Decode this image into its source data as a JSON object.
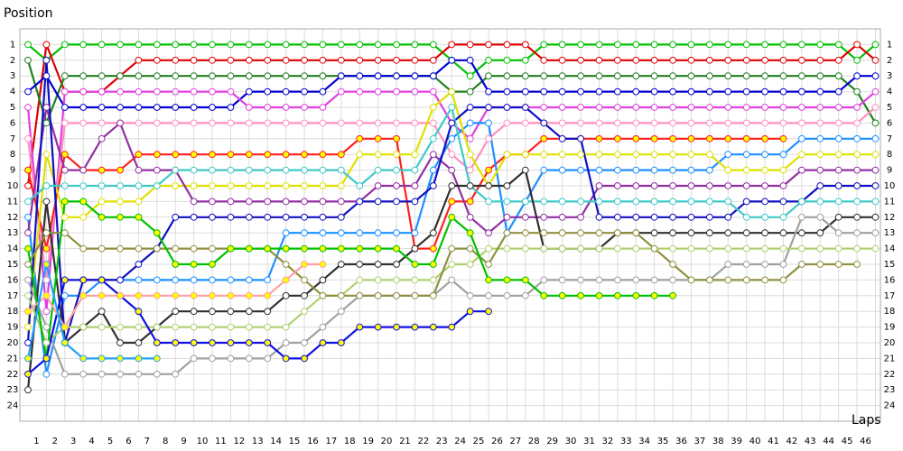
{
  "chart_data": {
    "type": "line",
    "title": "Position",
    "x_label": "Laps",
    "x": [
      0,
      1,
      2,
      3,
      4,
      5,
      6,
      7,
      8,
      9,
      10,
      11,
      12,
      13,
      14,
      15,
      16,
      17,
      18,
      19,
      20,
      21,
      22,
      23,
      24,
      25,
      26,
      27,
      28,
      29,
      30,
      31,
      32,
      33,
      34,
      35,
      36,
      37,
      38,
      39,
      40,
      41,
      42,
      43,
      44,
      45,
      46
    ],
    "xlim": [
      0,
      46.27
    ],
    "xticks": [
      1,
      2,
      3,
      4,
      5,
      6,
      7,
      8,
      9,
      10,
      11,
      12,
      13,
      14,
      15,
      16,
      17,
      18,
      19,
      20,
      21,
      22,
      23,
      24,
      25,
      26,
      27,
      28,
      29,
      30,
      31,
      32,
      33,
      34,
      35,
      36,
      37,
      38,
      39,
      40,
      41,
      42,
      43,
      44,
      45,
      46
    ],
    "ylim": [
      25,
      0
    ],
    "yticks": [
      1,
      2,
      3,
      4,
      5,
      6,
      7,
      8,
      9,
      10,
      11,
      12,
      13,
      14,
      15,
      16,
      17,
      18,
      19,
      20,
      21,
      22,
      23,
      24
    ],
    "grid": true,
    "series": [
      {
        "color": "#00c000",
        "marker_color": "#ffffff",
        "values": [
          1,
          2,
          1,
          1,
          1,
          1,
          1,
          1,
          1,
          1,
          1,
          1,
          1,
          1,
          1,
          1,
          1,
          1,
          1,
          1,
          1,
          1,
          1,
          2,
          3,
          2,
          2,
          2,
          1,
          1,
          1,
          1,
          1,
          1,
          1,
          1,
          1,
          1,
          1,
          1,
          1,
          1,
          1,
          1,
          1,
          2,
          1
        ]
      },
      {
        "color": "#e00000",
        "marker_color": "#ffffff",
        "values": [
          10,
          1,
          4,
          4,
          4,
          3,
          2,
          2,
          2,
          2,
          2,
          2,
          2,
          2,
          2,
          2,
          2,
          2,
          2,
          2,
          2,
          2,
          2,
          1,
          1,
          1,
          1,
          1,
          2,
          2,
          2,
          2,
          2,
          2,
          2,
          2,
          2,
          2,
          2,
          2,
          2,
          2,
          2,
          2,
          2,
          1,
          2
        ]
      },
      {
        "color": "#208020",
        "marker_color": "#ffffff",
        "values": [
          2,
          6,
          3,
          3,
          3,
          3,
          3,
          3,
          3,
          3,
          3,
          3,
          3,
          3,
          3,
          3,
          3,
          3,
          3,
          3,
          3,
          3,
          3,
          4,
          4,
          3,
          3,
          3,
          3,
          3,
          3,
          3,
          3,
          3,
          3,
          3,
          3,
          3,
          3,
          3,
          3,
          3,
          3,
          3,
          3,
          4,
          6
        ]
      },
      {
        "color": "#0000d0",
        "marker_color": "#ffffff",
        "values": [
          4,
          3,
          5,
          5,
          5,
          5,
          5,
          5,
          5,
          5,
          5,
          5,
          4,
          4,
          4,
          4,
          4,
          3,
          3,
          3,
          3,
          3,
          3,
          2,
          2,
          4,
          4,
          4,
          4,
          4,
          4,
          4,
          4,
          4,
          4,
          4,
          4,
          4,
          4,
          4,
          4,
          4,
          4,
          4,
          4,
          3,
          3
        ]
      },
      {
        "color": "#e040e0",
        "marker_color": "#ffffff",
        "values": [
          5,
          18,
          4,
          4,
          4,
          4,
          4,
          4,
          4,
          4,
          4,
          4,
          5,
          5,
          5,
          5,
          5,
          4,
          4,
          4,
          4,
          4,
          4,
          6,
          7,
          5,
          5,
          5,
          5,
          5,
          5,
          5,
          5,
          5,
          5,
          5,
          5,
          5,
          5,
          5,
          5,
          5,
          5,
          5,
          5,
          5,
          4
        ]
      },
      {
        "color": "#ff90c0",
        "marker_color": "#ffffff",
        "values": [
          7,
          16,
          6,
          6,
          6,
          6,
          6,
          6,
          6,
          6,
          6,
          6,
          6,
          6,
          6,
          6,
          6,
          6,
          6,
          6,
          6,
          6,
          6,
          8,
          9,
          7,
          6,
          6,
          6,
          6,
          6,
          6,
          6,
          6,
          6,
          6,
          6,
          6,
          6,
          6,
          6,
          6,
          6,
          6,
          6,
          6,
          5
        ]
      },
      {
        "color": "#ff2020",
        "marker_color": "#ffff00",
        "values": [
          9,
          14,
          8,
          9,
          9,
          9,
          8,
          8,
          8,
          8,
          8,
          8,
          8,
          8,
          8,
          8,
          8,
          8,
          7,
          7,
          7,
          14,
          14,
          11,
          11,
          9,
          8,
          8,
          7,
          7,
          7,
          7,
          7,
          7,
          7,
          7,
          7,
          7,
          7,
          7,
          7,
          7,
          null,
          null,
          null,
          null,
          null
        ]
      },
      {
        "color": "#1e90ff",
        "marker_color": "#ffffff",
        "values": [
          12,
          22,
          17,
          17,
          16,
          16,
          16,
          16,
          16,
          16,
          16,
          16,
          16,
          16,
          13,
          13,
          13,
          13,
          13,
          13,
          13,
          13,
          9,
          7,
          6,
          6,
          13,
          11,
          9,
          9,
          9,
          9,
          9,
          9,
          9,
          9,
          9,
          9,
          8,
          8,
          8,
          8,
          7,
          7,
          7,
          7,
          7
        ]
      },
      {
        "color": "#e0e000",
        "marker_color": "#ffffff",
        "values": [
          19,
          8,
          12,
          12,
          11,
          11,
          11,
          10,
          10,
          10,
          10,
          10,
          10,
          10,
          10,
          10,
          10,
          10,
          8,
          8,
          8,
          8,
          5,
          4,
          8,
          10,
          8,
          8,
          8,
          8,
          8,
          8,
          8,
          8,
          8,
          8,
          8,
          8,
          9,
          9,
          9,
          9,
          8,
          8,
          8,
          8,
          8
        ]
      },
      {
        "color": "#9030a0",
        "marker_color": "#ffffff",
        "values": [
          13,
          5,
          9,
          9,
          7,
          6,
          9,
          9,
          9,
          11,
          11,
          11,
          11,
          11,
          11,
          11,
          11,
          11,
          11,
          10,
          10,
          10,
          8,
          9,
          12,
          13,
          12,
          12,
          12,
          12,
          12,
          10,
          10,
          10,
          10,
          10,
          10,
          10,
          10,
          10,
          10,
          10,
          9,
          9,
          9,
          9,
          9
        ]
      },
      {
        "color": "#1010c0",
        "marker_color": "#ffffff",
        "values": [
          20,
          2,
          20,
          16,
          16,
          16,
          15,
          14,
          12,
          12,
          12,
          12,
          12,
          12,
          12,
          12,
          12,
          12,
          11,
          11,
          11,
          11,
          10,
          6,
          5,
          5,
          5,
          5,
          6,
          7,
          7,
          12,
          12,
          12,
          12,
          12,
          12,
          12,
          12,
          11,
          11,
          11,
          11,
          10,
          10,
          10,
          10
        ]
      },
      {
        "color": "#40c8c8",
        "marker_color": "#ffffff",
        "values": [
          11,
          10,
          10,
          10,
          10,
          10,
          10,
          10,
          9,
          9,
          9,
          9,
          9,
          9,
          9,
          9,
          9,
          9,
          10,
          9,
          9,
          9,
          7,
          5,
          10,
          11,
          11,
          11,
          11,
          11,
          11,
          11,
          11,
          11,
          11,
          11,
          11,
          11,
          11,
          12,
          12,
          12,
          11,
          11,
          11,
          11,
          11
        ]
      },
      {
        "color": "#303030",
        "marker_color": "#ffffff",
        "values": [
          23,
          11,
          20,
          19,
          18,
          20,
          20,
          19,
          18,
          18,
          18,
          18,
          18,
          18,
          17,
          17,
          16,
          15,
          15,
          15,
          15,
          14,
          13,
          10,
          10,
          10,
          10,
          9,
          14,
          14,
          14,
          14,
          13,
          13,
          13,
          13,
          13,
          13,
          13,
          13,
          13,
          13,
          13,
          13,
          12,
          12,
          12
        ]
      },
      {
        "color": "#a0a0a0",
        "marker_color": "#ffffff",
        "values": [
          16,
          19,
          22,
          22,
          22,
          22,
          22,
          22,
          22,
          21,
          21,
          21,
          21,
          21,
          20,
          20,
          19,
          18,
          17,
          17,
          17,
          17,
          17,
          16,
          17,
          17,
          17,
          17,
          16,
          16,
          16,
          16,
          16,
          16,
          16,
          16,
          16,
          16,
          15,
          15,
          15,
          15,
          12,
          12,
          13,
          13,
          13
        ]
      },
      {
        "color": "#b0d070",
        "marker_color": "#ffffff",
        "values": [
          17,
          20,
          19,
          19,
          19,
          19,
          19,
          19,
          19,
          19,
          19,
          19,
          19,
          19,
          19,
          18,
          17,
          17,
          16,
          16,
          16,
          16,
          16,
          15,
          15,
          14,
          14,
          14,
          14,
          14,
          14,
          14,
          14,
          14,
          14,
          14,
          14,
          14,
          14,
          14,
          14,
          14,
          14,
          14,
          14,
          14,
          14
        ]
      },
      {
        "color": "#909040",
        "marker_color": "#ffffff",
        "values": [
          15,
          13,
          13,
          14,
          14,
          14,
          14,
          14,
          14,
          14,
          14,
          14,
          14,
          14,
          15,
          16,
          17,
          17,
          17,
          17,
          17,
          17,
          17,
          14,
          14,
          15,
          13,
          13,
          13,
          13,
          13,
          13,
          13,
          13,
          14,
          15,
          16,
          16,
          16,
          16,
          16,
          16,
          15,
          15,
          15,
          15,
          null
        ]
      },
      {
        "color": "#00c000",
        "marker_color": "#ffff00",
        "values": [
          14,
          21,
          11,
          11,
          12,
          12,
          12,
          13,
          15,
          15,
          15,
          14,
          14,
          14,
          14,
          14,
          14,
          14,
          14,
          14,
          14,
          15,
          15,
          12,
          13,
          16,
          16,
          16,
          17,
          17,
          17,
          17,
          17,
          17,
          17,
          17,
          null,
          null,
          null,
          null,
          null,
          null,
          null,
          null,
          null,
          null,
          null
        ]
      },
      {
        "color": "#1010e0",
        "marker_color": "#ffff00",
        "values": [
          22,
          21,
          16,
          16,
          16,
          17,
          18,
          20,
          20,
          20,
          20,
          20,
          20,
          20,
          21,
          21,
          20,
          20,
          19,
          19,
          19,
          19,
          19,
          19,
          18,
          18,
          null,
          null,
          null,
          null,
          null,
          null,
          null,
          null,
          null,
          null,
          null,
          null,
          null,
          null,
          null,
          null,
          null,
          null,
          null,
          null,
          null
        ]
      },
      {
        "color": "#ffa0a0",
        "marker_color": "#ffff00",
        "values": [
          18,
          17,
          19,
          17,
          17,
          17,
          17,
          17,
          17,
          17,
          17,
          17,
          17,
          17,
          16,
          15,
          15,
          null,
          null,
          null,
          null,
          null,
          null,
          null,
          null,
          null,
          null,
          null,
          null,
          null,
          null,
          null,
          null,
          null,
          null,
          null,
          null,
          null,
          null,
          null,
          null,
          null,
          null,
          null,
          null,
          null,
          null
        ]
      },
      {
        "color": "#20a0ff",
        "marker_color": "#ffff00",
        "values": [
          21,
          15,
          20,
          21,
          21,
          21,
          21,
          21,
          null,
          null,
          null,
          null,
          null,
          null,
          null,
          null,
          null,
          null,
          null,
          null,
          null,
          null,
          null,
          null,
          null,
          null,
          null,
          null,
          null,
          null,
          null,
          null,
          null,
          null,
          null,
          null,
          null,
          null,
          null,
          null,
          null,
          null,
          null,
          null,
          null,
          null,
          null
        ]
      }
    ]
  }
}
